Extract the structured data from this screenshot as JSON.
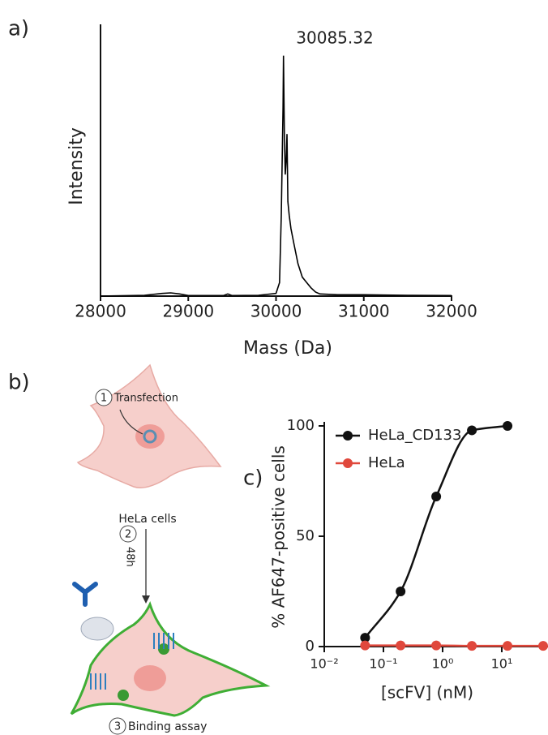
{
  "panel_labels": [
    "a)",
    "b)",
    "c)"
  ],
  "chart_data": [
    {
      "type": "line",
      "xlabel": "Mass (Da)",
      "ylabel": "Intensity",
      "annotations": [
        {
          "text": "30085.32",
          "x": 30085.32
        }
      ],
      "x": [
        28000,
        28500,
        28700,
        28800,
        28900,
        29000,
        29400,
        29450,
        29500,
        29800,
        30000,
        30040,
        30060,
        30080,
        30085,
        30095,
        30105,
        30115,
        30125,
        30135,
        30150,
        30170,
        30200,
        30250,
        30300,
        30350,
        30400,
        30450,
        30500,
        30700,
        31000,
        31500,
        32000
      ],
      "values": [
        0,
        0.3,
        1,
        1.2,
        0.8,
        0.2,
        0.2,
        0.8,
        0.2,
        0.3,
        1,
        5,
        30,
        70,
        89,
        60,
        45,
        50,
        60,
        35,
        30,
        25,
        20,
        12,
        7,
        5,
        3,
        1.5,
        0.8,
        0.5,
        0.5,
        0.3,
        0.2
      ],
      "color": "#000000",
      "xlim": [
        28000,
        32000
      ],
      "xticks": [
        28000,
        29000,
        30000,
        31000,
        32000
      ],
      "ylim": [
        0,
        100
      ]
    },
    {
      "type": "scatter",
      "xlabel": "[scFV] (nM)",
      "ylabel": "% AF647-positive cells",
      "xscale": "log",
      "xlim": [
        0.01,
        50
      ],
      "xticks": [
        {
          "value": 0.01,
          "label": "10⁻²"
        },
        {
          "value": 0.1,
          "label": "10⁻¹"
        },
        {
          "value": 1,
          "label": "10⁰"
        },
        {
          "value": 10,
          "label": "10¹"
        }
      ],
      "ylim": [
        0,
        100
      ],
      "yticks": [
        0,
        50,
        100
      ],
      "legend": "upper left",
      "series": [
        {
          "name": "HeLa_CD133",
          "color": "#111111",
          "x": [
            0.049,
            0.195,
            0.78,
            3.125,
            12.5
          ],
          "values": [
            4,
            25,
            68,
            98,
            100
          ]
        },
        {
          "name": "HeLa",
          "color": "#e0483c",
          "x": [
            0.049,
            0.195,
            0.78,
            3.125,
            12.5,
            50
          ],
          "values": [
            0.5,
            0.5,
            0.5,
            0.3,
            0.3,
            0.3
          ]
        }
      ]
    }
  ],
  "diagram": {
    "steps": [
      {
        "number": "1",
        "label": "Transfection"
      },
      {
        "number": "2",
        "label": "48h"
      },
      {
        "number": "3",
        "label": "Binding assay"
      }
    ],
    "cell_label": "HeLa cells"
  }
}
